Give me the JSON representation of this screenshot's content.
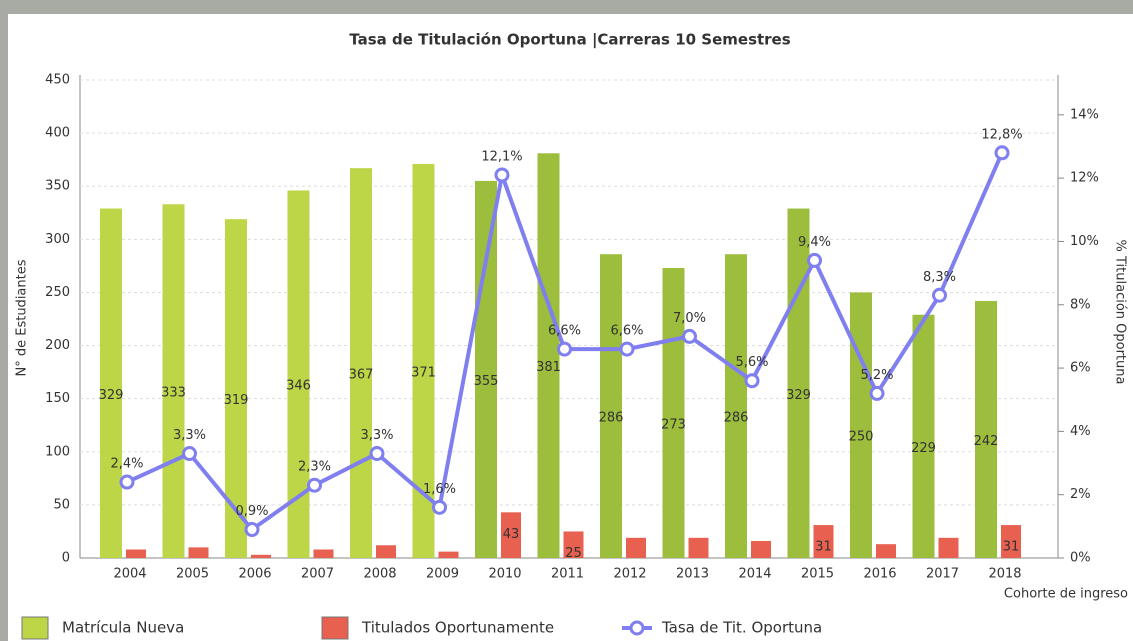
{
  "chart_data": {
    "type": "bar-line",
    "title": "Tasa de Titulación Oportuna |Carreras 10 Semestres",
    "x_label": "Cohorte de ingreso",
    "y_label": "N° de Estudiantes",
    "y2_label": "% Titulación Oportuna",
    "categories": [
      "2004",
      "2005",
      "2006",
      "2007",
      "2008",
      "2009",
      "2010",
      "2011",
      "2012",
      "2013",
      "2014",
      "2015",
      "2016",
      "2017",
      "2018"
    ],
    "series": [
      {
        "name": "Matrícula Nueva",
        "color": "#bcd647",
        "colors": [
          "#bcd647",
          "#bcd647",
          "#bcd647",
          "#bcd647",
          "#bcd647",
          "#bcd647",
          "#9dbd3c",
          "#9dbd3c",
          "#9dbd3c",
          "#9dbd3c",
          "#9dbd3c",
          "#9dbd3c",
          "#9dbd3c",
          "#9dbd3c",
          "#9dbd3c"
        ],
        "values": [
          329,
          333,
          319,
          346,
          367,
          371,
          355,
          381,
          286,
          273,
          286,
          329,
          250,
          229,
          242
        ]
      },
      {
        "name": "Titulados Oportunamente",
        "color": "#e8604f",
        "values": [
          8,
          10,
          3,
          8,
          12,
          6,
          43,
          25,
          19,
          19,
          16,
          31,
          13,
          19,
          31
        ],
        "value_labels": [
          null,
          null,
          null,
          null,
          null,
          null,
          "43",
          "25",
          null,
          null,
          null,
          "31",
          null,
          null,
          "31"
        ]
      },
      {
        "name": "Tasa de Tit. Oportuna",
        "color": "#7f7ff0",
        "axis": "y2",
        "values": [
          2.4,
          3.3,
          0.9,
          2.3,
          3.3,
          1.6,
          12.1,
          6.6,
          6.6,
          7.0,
          5.6,
          9.4,
          5.2,
          8.3,
          12.8
        ],
        "value_labels": [
          "2,4%",
          "3,3%",
          "0,9%",
          "2,3%",
          "3,3%",
          "1,6%",
          "12,1%",
          "6,6%",
          "6,6%",
          "7,0%",
          "5,6%",
          "9,4%",
          "5,2%",
          "8,3%",
          "12,8%"
        ]
      }
    ],
    "ylim": [
      0,
      450
    ],
    "yticks": [
      0,
      50,
      100,
      150,
      200,
      250,
      300,
      350,
      400,
      450
    ],
    "y2lim": [
      0,
      15.1
    ],
    "y2ticks": [
      {
        "value": 0,
        "label": "0%"
      },
      {
        "value": 2,
        "label": "2%"
      },
      {
        "value": 4,
        "label": "4%"
      },
      {
        "value": 6,
        "label": "6%"
      },
      {
        "value": 8,
        "label": "8%"
      },
      {
        "value": 10,
        "label": "10%"
      },
      {
        "value": 12,
        "label": "12%"
      },
      {
        "value": 14,
        "label": "14%"
      }
    ],
    "grid": true
  }
}
